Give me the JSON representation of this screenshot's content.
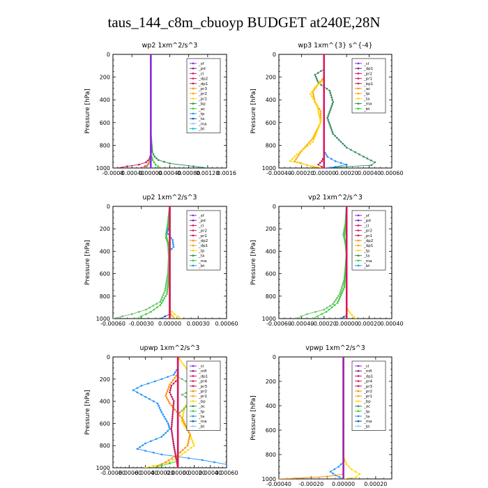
{
  "title": "taus_144_c8m_cbuoyp  BUDGET at240E,28N",
  "colors": {
    "sf": "#8a2be2",
    "pd": "#7b1fa2",
    "cl": "#e0115f",
    "dp2": "#d81b60",
    "dp1": "#c2185b",
    "pr3": "#ff8c00",
    "pr2": "#ffa500",
    "pr1": "#ffd700",
    "bp": "#2e8b57",
    "ac": "#32cd32",
    "tp": "#1e90ff",
    "ta": "#1f4fa0",
    "ma": "#87cefa",
    "bt": "#00bcd4",
    "mfl": "#9c27b0",
    "pr4": "#ff7043",
    "pr5": "#66bb6a"
  },
  "chart_data": [
    {
      "type": "line",
      "title": "wp2  1xm^2/s^3",
      "ylabel": "Pressure  [hPa]",
      "xlim": [
        -0.0008,
        0.0016
      ],
      "ylim": [
        1000,
        0
      ],
      "xticks": [
        "-0.0008",
        "-0.00040",
        "0.00000",
        "0.00040",
        "0.00080",
        "0.00120",
        "0.0016"
      ],
      "yticks": [
        "0",
        "200",
        "400",
        "600",
        "800",
        "1000"
      ],
      "legend": [
        "_sf",
        "_pd",
        "_cl",
        "_dp2",
        "_dp1",
        "_pr3",
        "_pr2",
        "_pr1",
        "_bp",
        "_ac",
        "_tp",
        "_ta",
        "_ma",
        "_bt"
      ],
      "series": [
        {
          "name": "_bp",
          "color": "bp",
          "x": [
            0,
            0,
            2e-05,
            3e-05,
            8e-05,
            0.00016,
            0.0004,
            0.0009,
            0.0012
          ],
          "y": [
            0,
            700,
            810,
            860,
            900,
            930,
            960,
            985,
            1000
          ]
        },
        {
          "name": "_dp1",
          "color": "dp1",
          "x": [
            0,
            0,
            -3e-05,
            -0.0001,
            -0.00025,
            -0.0005,
            -0.0007
          ],
          "y": [
            0,
            880,
            920,
            950,
            970,
            985,
            1000
          ]
        },
        {
          "name": "_dp2",
          "color": "dp2",
          "x": [
            0,
            0,
            -2e-05,
            -5e-05,
            -0.00012,
            -0.0002
          ],
          "y": [
            0,
            900,
            940,
            965,
            985,
            1000
          ]
        },
        {
          "name": "_ac",
          "color": "ac",
          "x": [
            0,
            0,
            4e-05,
            0.0001,
            0.0002
          ],
          "y": [
            0,
            880,
            930,
            970,
            1000
          ]
        },
        {
          "name": "_tp",
          "color": "tp",
          "x": [
            0,
            0,
            -5e-05,
            -0.0001
          ],
          "y": [
            0,
            920,
            960,
            1000
          ]
        },
        {
          "name": "_pr3",
          "color": "pr3",
          "x": [
            0,
            0,
            -5e-05,
            -0.00015
          ],
          "y": [
            0,
            930,
            965,
            1000
          ]
        },
        {
          "name": "_sf",
          "color": "sf",
          "x": [
            0,
            0
          ],
          "y": [
            0,
            1000
          ]
        }
      ]
    },
    {
      "type": "line",
      "title": "wp3  1xm^{3} s^{-4}",
      "ylabel": "Pressure  [hPa]",
      "xlim": [
        -0.0004,
        0.0006
      ],
      "ylim": [
        1000,
        0
      ],
      "xticks": [
        "-0.00040",
        "-0.00020",
        "0.00000",
        "0.00020",
        "0.00040",
        "0.00060"
      ],
      "yticks": [
        "0",
        "200",
        "400",
        "600",
        "800",
        "1000"
      ],
      "legend": [
        "_cl",
        "_dp1",
        "_pr2",
        "_pr1",
        "_bp1",
        "_ac",
        "_tp",
        "_ta",
        "_ma",
        "_bt"
      ],
      "series": [
        {
          "name": "_bp1",
          "color": "bp",
          "x": [
            0,
            0,
            -8e-05,
            -5e-05,
            5e-05,
            8e-05,
            3e-05,
            8e-05,
            0.0002,
            0.00035,
            0.00045,
            0.00042,
            0.0
          ],
          "y": [
            0,
            130,
            180,
            250,
            320,
            420,
            560,
            700,
            820,
            900,
            950,
            975,
            1000
          ]
        },
        {
          "name": "_pr2",
          "color": "pr2",
          "x": [
            0,
            0,
            -5e-05,
            -0.0001,
            -8e-05,
            -3e-05,
            -3e-05,
            -0.0001,
            -0.0002,
            -0.00026,
            -0.0001,
            0.0
          ],
          "y": [
            0,
            200,
            260,
            330,
            420,
            500,
            600,
            740,
            850,
            940,
            990,
            1000
          ]
        },
        {
          "name": "_pr1",
          "color": "pr1",
          "x": [
            0,
            0,
            -8e-05,
            -0.00012,
            -6e-05,
            -3e-05,
            -0.0001,
            -0.00024,
            -0.0003,
            -0.0001,
            0.0
          ],
          "y": [
            0,
            220,
            290,
            350,
            450,
            600,
            770,
            880,
            940,
            985,
            1000
          ]
        },
        {
          "name": "_tp",
          "color": "tp",
          "x": [
            0,
            0,
            3e-05,
            0.0001,
            0.0002,
            0.0001,
            0.0
          ],
          "y": [
            0,
            850,
            900,
            940,
            970,
            990,
            1000
          ]
        },
        {
          "name": "_dp1",
          "color": "dp1",
          "x": [
            0,
            0,
            -2e-05,
            -5e-05,
            -2e-05,
            0.0
          ],
          "y": [
            0,
            900,
            940,
            970,
            990,
            1000
          ]
        },
        {
          "name": "_cl",
          "color": "cl",
          "x": [
            0,
            0
          ],
          "y": [
            0,
            1000
          ]
        }
      ]
    },
    {
      "type": "line",
      "title": "up2  1xm^2/s^3",
      "ylabel": "Pressure  [hPa]",
      "xlim": [
        -0.0006,
        0.0006
      ],
      "ylim": [
        1000,
        0
      ],
      "xticks": [
        "-0.00060",
        "-0.00030",
        "0.00000",
        "0.00030",
        "0.00060"
      ],
      "yticks": [
        "0",
        "200",
        "400",
        "600",
        "800",
        "1000"
      ],
      "legend": [
        "_sf",
        "_pd",
        "_cl",
        "_pr2",
        "_pr1",
        "_dp2",
        "_dp1",
        "_tp",
        "_ta",
        "_ma",
        "_bt"
      ],
      "series": [
        {
          "name": "_dp2",
          "color": "pr5",
          "x": [
            0,
            -2e-05,
            -4e-05,
            -2e-05,
            -1e-05,
            -2e-05,
            -5e-05,
            -0.0001,
            -0.00025,
            -0.0004,
            -0.0006
          ],
          "y": [
            0,
            150,
            250,
            320,
            450,
            600,
            750,
            850,
            920,
            960,
            1000
          ]
        },
        {
          "name": "_dp1",
          "color": "ac",
          "x": [
            0,
            -2e-05,
            -4e-05,
            -1e-05,
            0,
            -3e-05,
            -0.0001,
            -0.0002,
            -0.00035
          ],
          "y": [
            0,
            180,
            280,
            350,
            550,
            780,
            880,
            940,
            1000
          ]
        },
        {
          "name": "_tp",
          "color": "tp",
          "x": [
            0,
            0,
            -3e-05,
            3e-05,
            4e-05,
            0,
            0
          ],
          "y": [
            0,
            180,
            230,
            300,
            360,
            400,
            1000
          ]
        },
        {
          "name": "_ta",
          "color": "ta",
          "x": [
            0,
            0,
            -5e-05,
            -0.0001
          ],
          "y": [
            0,
            960,
            980,
            1000
          ]
        },
        {
          "name": "_pr1",
          "color": "pr1",
          "x": [
            0,
            0,
            5e-05,
            0.00012
          ],
          "y": [
            0,
            920,
            960,
            1000
          ]
        },
        {
          "name": "_pr2",
          "color": "pr2",
          "x": [
            0,
            0,
            3e-05,
            6e-05
          ],
          "y": [
            0,
            950,
            980,
            1000
          ]
        },
        {
          "name": "_cl",
          "color": "cl",
          "x": [
            0,
            0
          ],
          "y": [
            0,
            1000
          ]
        }
      ]
    },
    {
      "type": "line",
      "title": "vp2  1xm^2/s^3",
      "ylabel": "Pressure  [hPa]",
      "xlim": [
        -0.0006,
        0.0004
      ],
      "ylim": [
        1000,
        0
      ],
      "xticks": [
        "-0.00060",
        "-0.00040",
        "-0.00020",
        "0.00000",
        "0.00020",
        "0.00040"
      ],
      "yticks": [
        "0",
        "200",
        "400",
        "600",
        "800",
        "1000"
      ],
      "legend": [
        "_sf",
        "_pd",
        "_cl",
        "_pr2",
        "_pr1",
        "_dp2",
        "_dp1",
        "_tp",
        "_ta",
        "_ma",
        "_bt"
      ],
      "series": [
        {
          "name": "_dp2",
          "color": "pr5",
          "x": [
            0,
            -1e-05,
            -3e-05,
            -1e-05,
            0,
            -2e-05,
            -6e-05,
            -0.00012,
            -0.0002,
            -0.00035,
            -0.00045
          ],
          "y": [
            0,
            150,
            250,
            320,
            450,
            650,
            780,
            870,
            920,
            960,
            1000
          ]
        },
        {
          "name": "_dp1",
          "color": "ac",
          "x": [
            0,
            -1e-05,
            -2e-05,
            0,
            -2e-05,
            -8e-05,
            -0.00018,
            -0.0003
          ],
          "y": [
            0,
            180,
            280,
            400,
            720,
            860,
            940,
            1000
          ]
        },
        {
          "name": "_pr1",
          "color": "pr1",
          "x": [
            0,
            0,
            3e-05,
            8e-05
          ],
          "y": [
            0,
            900,
            950,
            1000
          ]
        },
        {
          "name": "_ta",
          "color": "ta",
          "x": [
            0,
            0,
            -5e-05
          ],
          "y": [
            0,
            970,
            1000
          ]
        },
        {
          "name": "_cl",
          "color": "cl",
          "x": [
            0,
            0
          ],
          "y": [
            0,
            1000
          ]
        }
      ]
    },
    {
      "type": "line",
      "title": "upwp  1xm^2/s^3",
      "ylabel": "Pressure  [hPa]",
      "xlim": [
        -0.0008,
        0.0006
      ],
      "ylim": [
        1000,
        0
      ],
      "xticks": [
        "-0.00080",
        "-0.00060",
        "-0.00040",
        "-0.00020",
        "0.00000",
        "0.00020",
        "0.00040",
        "0.00060"
      ],
      "yticks": [
        "0",
        "200",
        "400",
        "600",
        "800",
        "1000"
      ],
      "legend": [
        "_cl",
        "_mfl",
        "_dp1",
        "_pr4",
        "_pr3",
        "_pr2",
        "_pr1",
        "_bp",
        "_ac",
        "_tp",
        "_ta",
        "_ma",
        "_bt"
      ],
      "series": [
        {
          "name": "_tp",
          "color": "tp",
          "x": [
            0,
            0,
            -5e-05,
            -0.0002,
            -0.00045,
            -0.00055,
            -0.0004,
            -0.00025,
            -0.0002,
            -0.00012,
            -0.0001,
            -0.0002,
            -0.0004,
            -0.0005,
            -0.0002,
            0.0003,
            0.0006
          ],
          "y": [
            0,
            100,
            160,
            200,
            260,
            300,
            360,
            420,
            500,
            600,
            650,
            720,
            780,
            830,
            880,
            930,
            970
          ]
        },
        {
          "name": "_pr1",
          "color": "pr1",
          "x": [
            0,
            0.0001,
            0.00015,
            0.0002,
            0.0002,
            0.00015,
            8e-05,
            5e-05,
            0.00015,
            0.0002,
            5e-05,
            -0.0001,
            -0.0004
          ],
          "y": [
            0,
            100,
            160,
            220,
            300,
            380,
            460,
            580,
            700,
            800,
            880,
            950,
            1000
          ]
        },
        {
          "name": "_pr5",
          "color": "pr5",
          "x": [
            0,
            0,
            0.00015,
            0.0002,
            5e-05,
            0.00018,
            0.0001,
            0.0
          ],
          "y": [
            0,
            180,
            240,
            290,
            340,
            400,
            450,
            520
          ]
        },
        {
          "name": "_pr3",
          "color": "pr3",
          "x": [
            0,
            0.0,
            -0.0001,
            -0.00015,
            -0.0001,
            5e-05,
            0.00015,
            0.00012,
            0.0,
            -0.00015,
            -0.0003
          ],
          "y": [
            0,
            150,
            250,
            350,
            420,
            550,
            700,
            800,
            880,
            950,
            1000
          ]
        },
        {
          "name": "_dp1",
          "color": "dp1",
          "x": [
            0,
            0,
            -8e-05,
            -0.0001,
            -5e-05,
            -8e-05,
            -5e-05,
            0
          ],
          "y": [
            0,
            200,
            260,
            320,
            400,
            650,
            800,
            1000
          ]
        },
        {
          "name": "_ac",
          "color": "ac",
          "x": [
            0,
            0,
            -0.0003
          ],
          "y": [
            0,
            940,
            1000
          ]
        },
        {
          "name": "_cl",
          "color": "cl",
          "x": [
            0,
            0
          ],
          "y": [
            0,
            1000
          ]
        }
      ]
    },
    {
      "type": "line",
      "title": "vpwp  1xm^2/s^3",
      "ylabel": "Pressure  [hPa]",
      "xlim": [
        -0.0004,
        0.0003
      ],
      "ylim": [
        1000,
        0
      ],
      "xticks": [
        "-0.00040",
        "-0.00020",
        "0.00000",
        "0.00020"
      ],
      "yticks": [
        "0",
        "200",
        "400",
        "600",
        "800",
        "1000"
      ],
      "legend": [
        "_cl",
        "_mfl",
        "_dp1",
        "_pr4",
        "_pr3",
        "_pr2",
        "_pr1",
        "_bp",
        "_ac",
        "_tp",
        "_ta",
        "_ma",
        "_bt"
      ],
      "series": [
        {
          "name": "_pr1",
          "color": "pr1",
          "x": [
            0,
            0,
            2e-05,
            5e-05,
            0.0001,
            8e-05,
            0.0
          ],
          "y": [
            0,
            820,
            880,
            920,
            960,
            985,
            1000
          ]
        },
        {
          "name": "_tp",
          "color": "tp",
          "x": [
            0,
            0,
            -3e-05,
            -8e-05,
            -5e-05,
            0.0
          ],
          "y": [
            0,
            860,
            900,
            940,
            970,
            1000
          ]
        },
        {
          "name": "_pr3",
          "color": "pr3",
          "x": [
            0,
            0,
            -0.0001,
            -0.0003,
            -0.0004
          ],
          "y": [
            0,
            960,
            980,
            995,
            1000
          ]
        },
        {
          "name": "_mfl",
          "color": "mfl",
          "x": [
            0,
            0
          ],
          "y": [
            0,
            1000
          ]
        }
      ]
    }
  ]
}
